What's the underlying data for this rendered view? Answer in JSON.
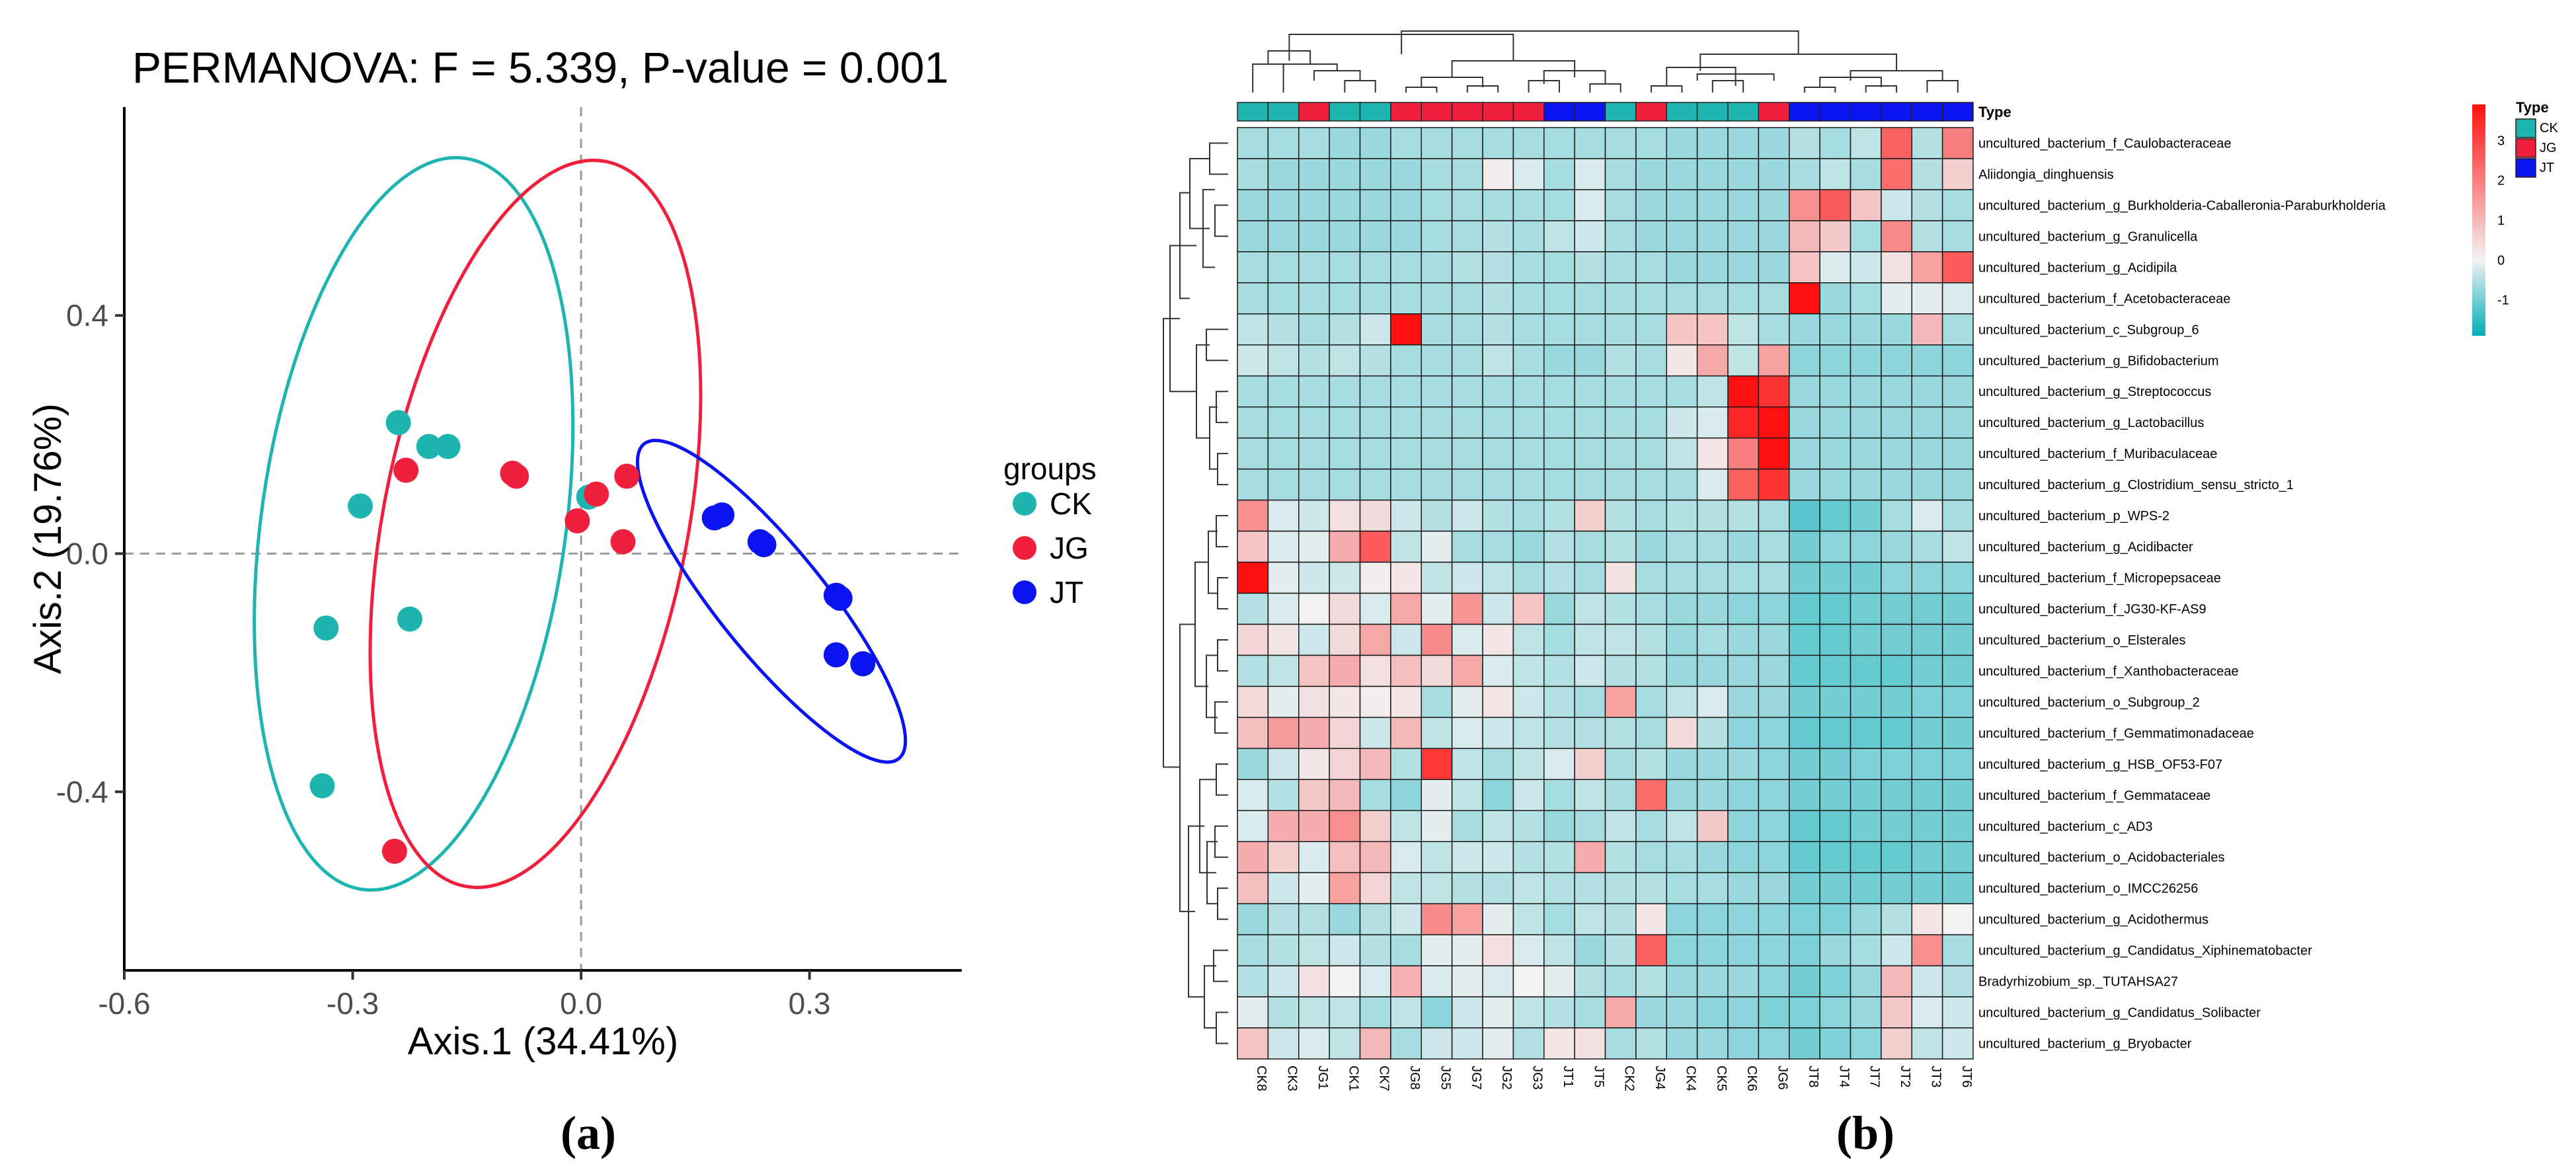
{
  "chart_data": [
    {
      "type": "scatter",
      "title": "PERMANOVA: F = 5.339, P-value = 0.001",
      "xlabel": "Axis.1 (34.41%)",
      "ylabel": "Axis.2 (19.76%)",
      "xlim": [
        -0.6,
        0.5
      ],
      "ylim": [
        -0.7,
        0.75
      ],
      "x_ticks": [
        "-0.6",
        "-0.3",
        "0.0",
        "0.3"
      ],
      "y_ticks": [
        "-0.4",
        "0.0",
        "0.4"
      ],
      "grid": false,
      "legend_title": "groups",
      "legend_position": "right",
      "panel_label": "(a)",
      "series": [
        {
          "name": "CK",
          "color": "#1EB5B0",
          "points": [
            [
              -0.24,
              0.22
            ],
            [
              -0.2,
              0.18
            ],
            [
              -0.175,
              0.18
            ],
            [
              -0.29,
              0.08
            ],
            [
              -0.335,
              -0.125
            ],
            [
              -0.225,
              -0.11
            ],
            [
              -0.34,
              -0.39
            ],
            [
              0.01,
              0.095
            ]
          ]
        },
        {
          "name": "JG",
          "color": "#F0203C",
          "points": [
            [
              -0.23,
              0.14
            ],
            [
              -0.09,
              0.135
            ],
            [
              0.06,
              0.13
            ],
            [
              0.02,
              0.1
            ],
            [
              -0.005,
              0.055
            ],
            [
              0.055,
              0.02
            ],
            [
              -0.245,
              -0.5
            ],
            [
              -0.085,
              0.13
            ]
          ]
        },
        {
          "name": "JT",
          "color": "#0A14F0",
          "points": [
            [
              0.175,
              0.06
            ],
            [
              0.185,
              0.065
            ],
            [
              0.235,
              0.02
            ],
            [
              0.24,
              0.015
            ],
            [
              0.335,
              -0.07
            ],
            [
              0.34,
              -0.075
            ],
            [
              0.335,
              -0.17
            ],
            [
              0.37,
              -0.185
            ]
          ]
        }
      ],
      "ellipses": [
        {
          "group": "CK",
          "color": "#1EB5B0",
          "center": [
            -0.22,
            0.05
          ],
          "radii": [
            0.2,
            0.62
          ],
          "angle_deg": 8
        },
        {
          "group": "JG",
          "color": "#F0203C",
          "center": [
            -0.06,
            0.05
          ],
          "radii": [
            0.2,
            0.62
          ],
          "angle_deg": 11
        },
        {
          "group": "JT",
          "color": "#0A14F0",
          "center": [
            0.25,
            -0.08
          ],
          "radii": [
            0.07,
            0.34
          ],
          "angle_deg": -39
        }
      ]
    },
    {
      "type": "heatmap",
      "panel_label": "(b)",
      "annotation_title": "Type",
      "legend_title": "Type",
      "legend_entries": [
        {
          "label": "CK",
          "color": "#1EB5B0"
        },
        {
          "label": "JG",
          "color": "#F0203C"
        },
        {
          "label": "JT",
          "color": "#0A14F0"
        }
      ],
      "colorbar": {
        "min": -1.9,
        "max": 3.9,
        "ticks": [
          "3",
          "2",
          "1",
          "0",
          "-1"
        ],
        "tick_values": [
          3,
          2,
          1,
          0,
          -1
        ],
        "colors": [
          "#00AEB8",
          "#F2F2F2",
          "#FF1010"
        ]
      },
      "columns": [
        "CK8",
        "CK3",
        "JG1",
        "CK1",
        "CK7",
        "JG8",
        "JG5",
        "JG7",
        "JG2",
        "JG3",
        "JT1",
        "JT5",
        "CK2",
        "JG4",
        "CK4",
        "CK5",
        "CK6",
        "JG6",
        "JT8",
        "JT4",
        "JT7",
        "JT2",
        "JT3",
        "JT6"
      ],
      "column_types": [
        "CK",
        "CK",
        "JG",
        "CK",
        "CK",
        "JG",
        "JG",
        "JG",
        "JG",
        "JG",
        "JT",
        "JT",
        "CK",
        "JG",
        "CK",
        "CK",
        "CK",
        "JG",
        "JT",
        "JT",
        "JT",
        "JT",
        "JT",
        "JT"
      ],
      "rows": [
        "uncultured_bacterium_f_Caulobacteraceae",
        "Aliidongia_dinghuensis",
        "uncultured_bacterium_g_Burkholderia-Caballeronia-Paraburkholderia",
        "uncultured_bacterium_g_Granulicella",
        "uncultured_bacterium_g_Acidipila",
        "uncultured_bacterium_f_Acetobacteraceae",
        "uncultured_bacterium_c_Subgroup_6",
        "uncultured_bacterium_g_Bifidobacterium",
        "uncultured_bacterium_g_Streptococcus",
        "uncultured_bacterium_g_Lactobacillus",
        "uncultured_bacterium_f_Muribaculaceae",
        "uncultured_bacterium_g_Clostridium_sensu_stricto_1",
        "uncultured_bacterium_p_WPS-2",
        "uncultured_bacterium_g_Acidibacter",
        "uncultured_bacterium_f_Micropepsaceae",
        "uncultured_bacterium_f_JG30-KF-AS9",
        "uncultured_bacterium_o_Elsterales",
        "uncultured_bacterium_f_Xanthobacteraceae",
        "uncultured_bacterium_o_Subgroup_2",
        "uncultured_bacterium_f_Gemmatimonadaceae",
        "uncultured_bacterium_g_HSB_OF53-F07",
        "uncultured_bacterium_f_Gemmataceae",
        "uncultured_bacterium_c_AD3",
        "uncultured_bacterium_o_Acidobacteriales",
        "uncultured_bacterium_o_IMCC26256",
        "uncultured_bacterium_g_Acidothermus",
        "uncultured_bacterium_g_Candidatus_Xiphinematobacter",
        "Bradyrhizobium_sp._TUTAHSA27",
        "uncultured_bacterium_g_Candidatus_Solibacter",
        "uncultured_bacterium_g_Bryobacter"
      ],
      "values": [
        [
          -0.6,
          -0.6,
          -0.6,
          -0.7,
          -0.7,
          -0.6,
          -0.6,
          -0.6,
          -0.6,
          -0.6,
          -0.6,
          -0.6,
          -0.6,
          -0.6,
          -0.7,
          -0.7,
          -0.7,
          -0.7,
          -0.5,
          -0.6,
          -0.4,
          2.5,
          -0.5,
          2.0
        ],
        [
          -0.6,
          -0.7,
          -0.7,
          -0.7,
          -0.7,
          -0.7,
          -0.6,
          -0.6,
          0.1,
          -0.2,
          -0.6,
          -0.2,
          -0.6,
          -0.7,
          -0.7,
          -0.7,
          -0.7,
          -0.7,
          -0.6,
          -0.4,
          -0.6,
          2.3,
          -0.5,
          0.6
        ],
        [
          -0.7,
          -0.7,
          -0.7,
          -0.7,
          -0.7,
          -0.7,
          -0.6,
          -0.6,
          -0.6,
          -0.6,
          -0.6,
          -0.2,
          -0.6,
          -0.7,
          -0.7,
          -0.7,
          -0.7,
          -0.7,
          1.7,
          2.6,
          0.8,
          -0.3,
          -0.5,
          -0.6
        ],
        [
          -0.7,
          -0.7,
          -0.7,
          -0.7,
          -0.7,
          -0.7,
          -0.6,
          -0.6,
          -0.5,
          -0.6,
          -0.4,
          -0.3,
          -0.6,
          -0.7,
          -0.7,
          -0.7,
          -0.7,
          -0.7,
          1.0,
          0.7,
          -0.6,
          1.8,
          -0.5,
          -0.6
        ],
        [
          -0.6,
          -0.6,
          -0.6,
          -0.6,
          -0.6,
          -0.6,
          -0.6,
          -0.5,
          -0.5,
          -0.6,
          -0.6,
          -0.5,
          -0.6,
          -0.6,
          -0.7,
          -0.7,
          -0.7,
          -0.7,
          0.8,
          -0.2,
          -0.3,
          0.3,
          1.4,
          2.6
        ],
        [
          -0.6,
          -0.6,
          -0.6,
          -0.6,
          -0.6,
          -0.6,
          -0.6,
          -0.6,
          -0.5,
          -0.6,
          -0.6,
          -0.6,
          -0.6,
          -0.6,
          -0.6,
          -0.6,
          -0.6,
          -0.6,
          3.9,
          -0.7,
          -0.6,
          -0.1,
          -0.1,
          -0.2
        ],
        [
          -0.4,
          -0.5,
          -0.6,
          -0.5,
          -0.3,
          3.9,
          -0.6,
          -0.6,
          -0.5,
          -0.6,
          -0.6,
          -0.6,
          -0.6,
          -0.6,
          0.8,
          0.8,
          -0.4,
          -0.6,
          -0.7,
          -0.7,
          -0.7,
          -0.7,
          1.0,
          -0.6
        ],
        [
          -0.3,
          -0.4,
          -0.5,
          -0.4,
          -0.5,
          -0.6,
          -0.6,
          -0.6,
          -0.4,
          -0.6,
          -0.7,
          -0.7,
          -0.5,
          -0.6,
          0.2,
          1.3,
          -0.4,
          1.4,
          -0.8,
          -0.8,
          -0.8,
          -0.8,
          -0.8,
          -0.8
        ],
        [
          -0.6,
          -0.6,
          -0.6,
          -0.6,
          -0.6,
          -0.6,
          -0.6,
          -0.6,
          -0.6,
          -0.6,
          -0.6,
          -0.6,
          -0.6,
          -0.6,
          -0.6,
          -0.4,
          3.9,
          3.3,
          -0.7,
          -0.7,
          -0.7,
          -0.7,
          -0.7,
          -0.7
        ],
        [
          -0.6,
          -0.6,
          -0.6,
          -0.6,
          -0.6,
          -0.6,
          -0.6,
          -0.6,
          -0.6,
          -0.6,
          -0.6,
          -0.6,
          -0.6,
          -0.6,
          -0.3,
          -0.2,
          3.5,
          3.9,
          -0.7,
          -0.7,
          -0.7,
          -0.7,
          -0.7,
          -0.7
        ],
        [
          -0.6,
          -0.6,
          -0.6,
          -0.6,
          -0.6,
          -0.6,
          -0.6,
          -0.6,
          -0.6,
          -0.6,
          -0.6,
          -0.6,
          -0.6,
          -0.6,
          -0.4,
          0.2,
          2.0,
          3.9,
          -0.7,
          -0.7,
          -0.7,
          -0.7,
          -0.7,
          -0.7
        ],
        [
          -0.6,
          -0.6,
          -0.6,
          -0.6,
          -0.6,
          -0.6,
          -0.6,
          -0.6,
          -0.6,
          -0.6,
          -0.6,
          -0.6,
          -0.6,
          -0.6,
          -0.6,
          -0.2,
          2.5,
          3.3,
          -0.7,
          -0.7,
          -0.7,
          -0.7,
          -0.7,
          -0.7
        ],
        [
          1.7,
          -0.2,
          -0.3,
          0.3,
          0.4,
          -0.3,
          -0.5,
          -0.3,
          -0.5,
          -0.6,
          -0.5,
          0.6,
          -0.5,
          -0.6,
          -0.5,
          -0.5,
          -0.5,
          -0.6,
          -1.2,
          -1.1,
          -1.0,
          -0.6,
          -0.2,
          -0.6
        ],
        [
          0.8,
          -0.2,
          -0.1,
          1.2,
          2.6,
          -0.4,
          -0.1,
          -0.6,
          -0.6,
          -0.7,
          -0.5,
          -0.6,
          -0.5,
          -0.7,
          -0.6,
          -0.6,
          -0.7,
          -0.6,
          -1.0,
          -0.8,
          -0.8,
          -0.7,
          -0.6,
          -0.4
        ],
        [
          3.9,
          -0.1,
          -0.3,
          -0.3,
          0.1,
          0.2,
          -0.4,
          -0.3,
          -0.4,
          -0.6,
          -0.5,
          -0.6,
          0.3,
          -0.6,
          -0.6,
          -0.6,
          -0.6,
          -0.6,
          -1.0,
          -1.0,
          -1.0,
          -0.8,
          -0.8,
          -0.8
        ],
        [
          -0.5,
          -0.2,
          0.0,
          0.4,
          -0.2,
          1.3,
          -0.1,
          1.6,
          -0.3,
          0.8,
          -0.7,
          -0.4,
          -0.5,
          -0.6,
          -0.7,
          -0.7,
          -0.8,
          -0.8,
          -1.1,
          -1.1,
          -1.0,
          -1.0,
          -1.0,
          -1.0
        ],
        [
          0.5,
          0.2,
          -0.3,
          0.4,
          1.3,
          -0.3,
          1.8,
          -0.2,
          0.2,
          -0.4,
          -0.6,
          -0.4,
          -0.4,
          -0.5,
          -0.7,
          -0.6,
          -0.7,
          -0.7,
          -1.1,
          -1.1,
          -1.0,
          -1.0,
          -1.0,
          -1.0
        ],
        [
          -0.5,
          -0.4,
          0.8,
          1.2,
          0.3,
          0.9,
          0.4,
          1.3,
          -0.2,
          -0.4,
          -0.5,
          -0.3,
          -0.5,
          -0.5,
          -0.7,
          -0.7,
          -0.7,
          -0.7,
          -1.1,
          -1.1,
          -1.1,
          -1.1,
          -1.0,
          -1.0
        ],
        [
          0.4,
          -0.1,
          0.3,
          0.2,
          0.1,
          0.2,
          -0.6,
          -0.1,
          0.2,
          -0.3,
          -0.5,
          -0.6,
          1.4,
          -0.6,
          -0.4,
          -0.2,
          -0.7,
          -0.7,
          -1.0,
          -1.0,
          -1.0,
          -1.0,
          -0.9,
          -0.9
        ],
        [
          0.9,
          1.5,
          1.2,
          0.5,
          -0.3,
          1.0,
          -0.4,
          -0.2,
          -0.3,
          -0.4,
          -0.5,
          -0.5,
          -0.5,
          -0.6,
          0.4,
          -0.5,
          -0.8,
          -0.8,
          -1.1,
          -1.1,
          -1.1,
          -1.1,
          -1.0,
          -1.0
        ],
        [
          -0.7,
          -0.3,
          0.2,
          0.5,
          1.0,
          -0.5,
          3.2,
          -0.4,
          -0.6,
          -0.4,
          -0.2,
          0.6,
          -0.6,
          -0.5,
          -0.7,
          -0.7,
          -0.7,
          -0.8,
          -1.0,
          -1.0,
          -0.9,
          -0.9,
          -0.9,
          -0.9
        ],
        [
          -0.2,
          -0.5,
          0.7,
          1.0,
          -0.6,
          -0.8,
          -0.1,
          -0.4,
          -0.8,
          -0.3,
          -0.6,
          -0.4,
          -0.6,
          2.3,
          -0.7,
          -0.7,
          -0.8,
          -0.8,
          -1.0,
          -1.0,
          -1.0,
          -1.0,
          -1.0,
          -1.0
        ],
        [
          -0.2,
          1.2,
          1.2,
          1.7,
          0.6,
          -0.4,
          -0.1,
          -0.6,
          -0.4,
          -0.5,
          -0.7,
          -0.6,
          -0.4,
          -0.6,
          -0.4,
          0.7,
          -0.8,
          -0.8,
          -1.1,
          -1.1,
          -1.0,
          -1.0,
          -1.0,
          -1.0
        ],
        [
          1.2,
          0.6,
          -0.2,
          0.9,
          1.0,
          -0.2,
          -0.4,
          -0.3,
          -0.3,
          -0.5,
          -0.5,
          1.2,
          -0.5,
          -0.6,
          -0.6,
          -0.7,
          -0.8,
          -0.8,
          -1.1,
          -1.1,
          -1.1,
          -1.1,
          -1.0,
          -1.0
        ],
        [
          0.9,
          -0.3,
          -0.1,
          1.4,
          0.5,
          -0.4,
          -0.4,
          -0.5,
          -0.5,
          -0.4,
          -0.5,
          -0.5,
          -0.5,
          -0.5,
          -0.6,
          -0.6,
          -0.7,
          -0.7,
          -1.0,
          -1.0,
          -1.0,
          -1.0,
          -1.0,
          -1.0
        ],
        [
          -0.7,
          -0.5,
          -0.5,
          -0.7,
          -0.5,
          -0.3,
          1.8,
          1.4,
          -0.1,
          -0.4,
          -0.6,
          -0.4,
          -0.5,
          0.2,
          -0.8,
          -0.8,
          -0.8,
          -0.8,
          -0.9,
          -0.9,
          -0.7,
          -0.5,
          0.2,
          0.0
        ],
        [
          -0.6,
          -0.5,
          -0.4,
          -0.3,
          -0.5,
          -0.6,
          -0.1,
          -0.1,
          0.3,
          -0.2,
          -0.4,
          -0.7,
          -0.5,
          2.5,
          -0.8,
          -0.8,
          -0.8,
          -0.8,
          -0.9,
          -0.7,
          -0.6,
          -0.3,
          1.7,
          -0.6
        ],
        [
          -0.5,
          -0.3,
          0.3,
          0.0,
          -0.2,
          1.1,
          -0.2,
          -0.1,
          -0.2,
          0.0,
          -0.1,
          -0.5,
          -0.6,
          -0.5,
          -0.7,
          -0.7,
          -0.7,
          -0.8,
          -1.0,
          -0.9,
          -0.7,
          1.0,
          -0.3,
          -0.5
        ],
        [
          -0.1,
          -0.5,
          -0.4,
          -0.4,
          -0.6,
          -0.4,
          -0.8,
          -0.3,
          -0.1,
          -0.4,
          -0.5,
          -0.6,
          1.3,
          -0.7,
          -0.7,
          -0.8,
          -0.8,
          -0.9,
          -0.9,
          -0.8,
          -0.7,
          0.7,
          -0.2,
          -0.3
        ],
        [
          0.8,
          -0.3,
          -0.2,
          -0.4,
          1.0,
          -0.6,
          -0.3,
          -0.3,
          -0.1,
          -0.5,
          0.2,
          0.3,
          -0.6,
          -0.5,
          -0.7,
          -0.7,
          -0.8,
          -0.8,
          -1.0,
          -0.9,
          -0.8,
          0.6,
          -0.4,
          -0.3
        ]
      ]
    }
  ]
}
